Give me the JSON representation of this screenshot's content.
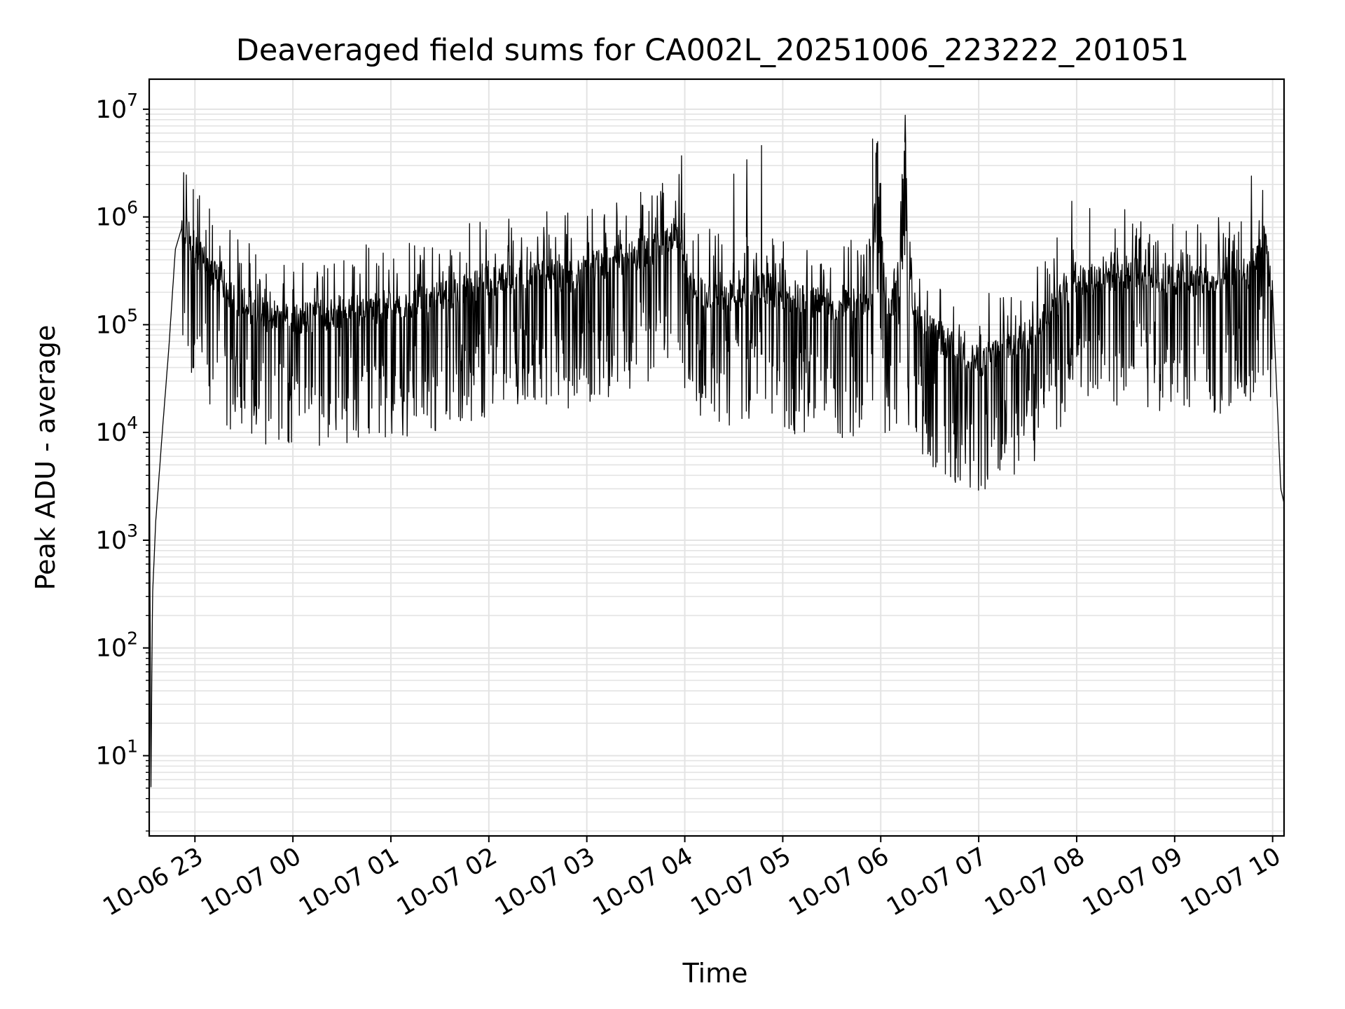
{
  "chart_data": {
    "type": "line",
    "title": "Deaveraged field sums for CA002L_20251006_223222_201051",
    "xlabel": "Time",
    "ylabel": "Peak ADU - average",
    "yscale": "log",
    "ylim": [
      1.8,
      19000000
    ],
    "xlim": [
      "2025-10-06 22:32",
      "2025-10-07 10:07"
    ],
    "grid": true,
    "line_color": "#000000",
    "x_ticks": [
      "10-06 23",
      "10-07 00",
      "10-07 01",
      "10-07 02",
      "10-07 03",
      "10-07 04",
      "10-07 05",
      "10-07 06",
      "10-07 07",
      "10-07 08",
      "10-07 09",
      "10-07 10"
    ],
    "y_ticks": [
      {
        "base": "10",
        "exp": "1"
      },
      {
        "base": "10",
        "exp": "2"
      },
      {
        "base": "10",
        "exp": "3"
      },
      {
        "base": "10",
        "exp": "4"
      },
      {
        "base": "10",
        "exp": "5"
      },
      {
        "base": "10",
        "exp": "6"
      },
      {
        "base": "10",
        "exp": "7"
      }
    ],
    "series": [
      {
        "x": [
          "2025-10-06 22:32",
          "2025-10-06 22:33",
          "2025-10-06 22:34",
          "2025-10-06 22:36",
          "2025-10-06 22:40",
          "2025-10-06 22:44",
          "2025-10-06 22:48",
          "2025-10-06 22:52",
          "2025-10-06 22:56",
          "2025-10-06 23:00",
          "2025-10-06 23:05",
          "2025-10-06 23:10",
          "2025-10-06 23:15",
          "2025-10-06 23:20",
          "2025-10-06 23:30",
          "2025-10-06 23:45",
          "2025-10-07 00:00",
          "2025-10-07 00:30",
          "2025-10-07 01:00",
          "2025-10-07 01:30",
          "2025-10-07 02:00",
          "2025-10-07 02:30",
          "2025-10-07 02:50",
          "2025-10-07 03:15",
          "2025-10-07 03:40",
          "2025-10-07 03:58",
          "2025-10-07 04:00",
          "2025-10-07 04:03",
          "2025-10-07 04:15",
          "2025-10-07 04:30",
          "2025-10-07 04:45",
          "2025-10-07 05:00",
          "2025-10-07 05:30",
          "2025-10-07 05:55",
          "2025-10-07 05:57",
          "2025-10-07 06:03",
          "2025-10-07 06:10",
          "2025-10-07 06:15",
          "2025-10-07 06:17",
          "2025-10-07 06:25",
          "2025-10-07 06:45",
          "2025-10-07 07:00",
          "2025-10-07 07:30",
          "2025-10-07 07:45",
          "2025-10-07 08:00",
          "2025-10-07 08:30",
          "2025-10-07 09:00",
          "2025-10-07 09:30",
          "2025-10-07 09:45",
          "2025-10-07 09:55",
          "2025-10-07 10:00",
          "2025-10-07 10:05",
          "2025-10-07 10:07"
        ],
        "y": [
          40000,
          3.8,
          300,
          1500,
          10000,
          60000,
          500000,
          800000,
          700000,
          500000,
          400000,
          300000,
          250000,
          200000,
          150000,
          120000,
          110000,
          130000,
          150000,
          180000,
          250000,
          300000,
          280000,
          380000,
          500000,
          700000,
          400000,
          220000,
          200000,
          180000,
          220000,
          180000,
          150000,
          160000,
          5000000,
          120000,
          200000,
          7000000,
          200000,
          100000,
          60000,
          45000,
          80000,
          150000,
          250000,
          300000,
          260000,
          250000,
          300000,
          600000,
          200000,
          3000,
          2200
        ],
        "spikes": [
          {
            "x": "2025-10-06 22:59",
            "y": 1800000
          },
          {
            "x": "2025-10-07 03:58",
            "y": 3700000
          },
          {
            "x": "2025-10-07 04:30",
            "y": 2500000
          },
          {
            "x": "2025-10-07 04:38",
            "y": 3400000
          },
          {
            "x": "2025-10-07 04:47",
            "y": 4600000
          },
          {
            "x": "2025-10-07 05:55",
            "y": 5300000
          },
          {
            "x": "2025-10-07 06:15",
            "y": 8800000
          },
          {
            "x": "2025-10-07 07:57",
            "y": 1400000
          },
          {
            "x": "2025-10-07 08:08",
            "y": 1200000
          },
          {
            "x": "2025-10-07 09:47",
            "y": 2400000
          }
        ],
        "dips": [
          {
            "x": "2025-10-07 04:00",
            "y": 26000
          },
          {
            "x": "2025-10-07 05:55",
            "y": 20000
          },
          {
            "x": "2025-10-07 06:45",
            "y": 11500
          },
          {
            "x": "2025-10-07 07:40",
            "y": 17000
          },
          {
            "x": "2025-10-07 08:10",
            "y": 26000
          },
          {
            "x": "2025-10-07 08:20",
            "y": 30000
          },
          {
            "x": "2025-10-07 09:37",
            "y": 30000
          }
        ]
      }
    ]
  }
}
